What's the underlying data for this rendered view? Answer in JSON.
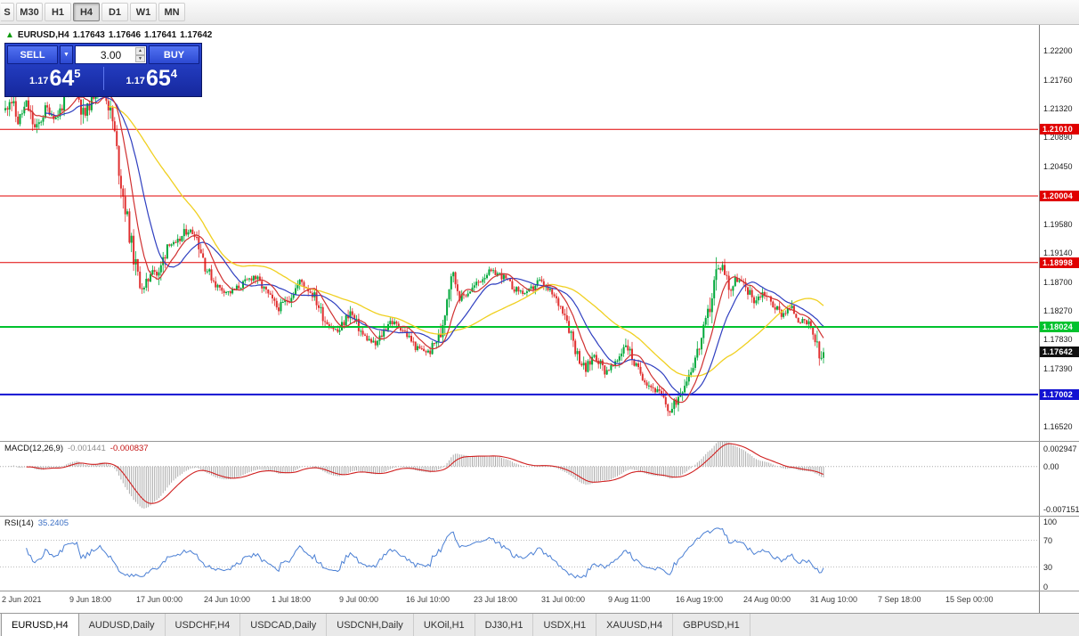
{
  "toolbar": {
    "timeframes": [
      {
        "label": "S",
        "active": false,
        "clipped": true
      },
      {
        "label": "M30",
        "active": false
      },
      {
        "label": "H1",
        "active": false
      },
      {
        "label": "H4",
        "active": true
      },
      {
        "label": "D1",
        "active": false
      },
      {
        "label": "W1",
        "active": false
      },
      {
        "label": "MN",
        "active": false
      }
    ]
  },
  "quote": {
    "arrow": "▲",
    "symbol": "EURUSD,H4",
    "open": "1.17643",
    "high": "1.17646",
    "low": "1.17641",
    "close": "1.17642"
  },
  "trade_panel": {
    "sell_label": "SELL",
    "buy_label": "BUY",
    "volume": "3.00",
    "sell_dropdown_icon": "▼",
    "spinner_up": "▲",
    "spinner_down": "▼",
    "bid": {
      "prefix": "1.17",
      "big": "64",
      "sup": "5"
    },
    "ask": {
      "prefix": "1.17",
      "big": "65",
      "sup": "4"
    }
  },
  "macd_panel": {
    "title": "MACD(12,26,9)",
    "value": "-0.001441",
    "signal": "-0.000837"
  },
  "rsi_panel": {
    "title": "RSI(14)",
    "value": "35.2405"
  },
  "tabs": [
    {
      "label": "EURUSD,H4",
      "active": true
    },
    {
      "label": "AUDUSD,Daily",
      "active": false
    },
    {
      "label": "USDCHF,H4",
      "active": false
    },
    {
      "label": "USDCAD,Daily",
      "active": false
    },
    {
      "label": "USDCNH,Daily",
      "active": false
    },
    {
      "label": "UKOil,H1",
      "active": false
    },
    {
      "label": "DJ30,H1",
      "active": false
    },
    {
      "label": "USDX,H1",
      "active": false
    },
    {
      "label": "XAUUSD,H4",
      "active": false
    },
    {
      "label": "GBPUSD,H1",
      "active": false
    }
  ],
  "chart_data": {
    "type": "candlestick",
    "symbol": "EURUSD",
    "timeframe": "H4",
    "bars": 390,
    "seed": 11,
    "price_max": 1.2259,
    "price_min": 1.163,
    "axis_ticks": [
      "1.22200",
      "1.21760",
      "1.21320",
      "1.20890",
      "1.20450",
      "1.20010",
      "1.19580",
      "1.19140",
      "1.18700",
      "1.18270",
      "1.17830",
      "1.17390",
      "1.16960",
      "1.16520"
    ],
    "levels": [
      {
        "price": 1.2101,
        "label": "1.21010",
        "color": "#e00000",
        "width": 1
      },
      {
        "price": 1.20004,
        "label": "1.20004",
        "color": "#e00000",
        "width": 1
      },
      {
        "price": 1.18998,
        "label": "1.18998",
        "color": "#e00000",
        "width": 1
      },
      {
        "price": 1.18024,
        "label": "1.18024",
        "color": "#00c22e",
        "width": 2
      },
      {
        "price": 1.17002,
        "label": "1.17002",
        "color": "#1212d2",
        "width": 2
      }
    ],
    "current_price": 1.17642,
    "current_label": "1.17642",
    "current_tag_color": "#101010",
    "ma_periods": {
      "fast": 10,
      "mid": 20,
      "slow": 50
    },
    "macd": {
      "fast": 12,
      "slow": 26,
      "signal": 9,
      "axis_range": [
        0.0041,
        -0.0082
      ],
      "axis_labels": [
        "0.002947",
        "0.00",
        "-0.007151"
      ]
    },
    "rsi": {
      "period": 14,
      "levels": [
        70,
        30
      ],
      "axis_labels": [
        "100",
        "70",
        "30",
        "0"
      ]
    },
    "colors": {
      "up": "#00a83a",
      "down": "#e03030",
      "ma_fast": "#d03030",
      "ma_mid": "#2f3fc0",
      "ma_slow": "#f0d020",
      "macd_hist": "#ababab",
      "macd_signal": "#d02020",
      "rsi": "#4a7fd4"
    },
    "time_labels": [
      "2 Jun 2021",
      "9 Jun 18:00",
      "17 Jun 00:00",
      "24 Jun 10:00",
      "1 Jul 18:00",
      "9 Jul 00:00",
      "16 Jul 10:00",
      "23 Jul 18:00",
      "31 Jul 00:00",
      "9 Aug 11:00",
      "16 Aug 19:00",
      "24 Aug 00:00",
      "31 Aug 10:00",
      "7 Sep 18:00",
      "15 Sep 00:00"
    ],
    "waypoints": [
      [
        0.0,
        1.213
      ],
      [
        0.006,
        1.2152
      ],
      [
        0.015,
        1.2112
      ],
      [
        0.026,
        1.214
      ],
      [
        0.037,
        1.2098
      ],
      [
        0.05,
        1.2134
      ],
      [
        0.062,
        1.2118
      ],
      [
        0.075,
        1.215
      ],
      [
        0.087,
        1.2164
      ],
      [
        0.096,
        1.2118
      ],
      [
        0.105,
        1.2146
      ],
      [
        0.115,
        1.217
      ],
      [
        0.124,
        1.2148
      ],
      [
        0.132,
        1.2108
      ],
      [
        0.14,
        1.2032
      ],
      [
        0.148,
        1.1972
      ],
      [
        0.156,
        1.1912
      ],
      [
        0.164,
        1.1868
      ],
      [
        0.171,
        1.1856
      ],
      [
        0.179,
        1.1898
      ],
      [
        0.187,
        1.1876
      ],
      [
        0.198,
        1.193
      ],
      [
        0.209,
        1.1926
      ],
      [
        0.222,
        1.195
      ],
      [
        0.233,
        1.1942
      ],
      [
        0.246,
        1.189
      ],
      [
        0.26,
        1.1862
      ],
      [
        0.274,
        1.1854
      ],
      [
        0.289,
        1.1866
      ],
      [
        0.304,
        1.188
      ],
      [
        0.318,
        1.1856
      ],
      [
        0.333,
        1.183
      ],
      [
        0.347,
        1.1846
      ],
      [
        0.361,
        1.1872
      ],
      [
        0.377,
        1.185
      ],
      [
        0.391,
        1.1812
      ],
      [
        0.407,
        1.1794
      ],
      [
        0.421,
        1.1826
      ],
      [
        0.437,
        1.179
      ],
      [
        0.453,
        1.1774
      ],
      [
        0.469,
        1.1812
      ],
      [
        0.485,
        1.18
      ],
      [
        0.503,
        1.177
      ],
      [
        0.518,
        1.1764
      ],
      [
        0.532,
        1.1792
      ],
      [
        0.545,
        1.1888
      ],
      [
        0.557,
        1.1846
      ],
      [
        0.572,
        1.1862
      ],
      [
        0.59,
        1.1886
      ],
      [
        0.605,
        1.1882
      ],
      [
        0.622,
        1.186
      ],
      [
        0.638,
        1.1852
      ],
      [
        0.652,
        1.1872
      ],
      [
        0.668,
        1.1852
      ],
      [
        0.684,
        1.1824
      ],
      [
        0.699,
        1.1762
      ],
      [
        0.709,
        1.1736
      ],
      [
        0.72,
        1.1762
      ],
      [
        0.733,
        1.1736
      ],
      [
        0.746,
        1.1746
      ],
      [
        0.758,
        1.178
      ],
      [
        0.771,
        1.1742
      ],
      [
        0.786,
        1.1716
      ],
      [
        0.801,
        1.17
      ],
      [
        0.813,
        1.1672
      ],
      [
        0.824,
        1.1702
      ],
      [
        0.837,
        1.1736
      ],
      [
        0.848,
        1.1772
      ],
      [
        0.858,
        1.1814
      ],
      [
        0.869,
        1.1886
      ],
      [
        0.877,
        1.1896
      ],
      [
        0.886,
        1.1858
      ],
      [
        0.894,
        1.1876
      ],
      [
        0.905,
        1.1862
      ],
      [
        0.916,
        1.1842
      ],
      [
        0.927,
        1.1856
      ],
      [
        0.938,
        1.1836
      ],
      [
        0.949,
        1.1822
      ],
      [
        0.96,
        1.1832
      ],
      [
        0.971,
        1.1812
      ],
      [
        0.981,
        1.1806
      ],
      [
        0.989,
        1.1786
      ],
      [
        0.996,
        1.1748
      ],
      [
        1.0,
        1.17642
      ]
    ]
  }
}
